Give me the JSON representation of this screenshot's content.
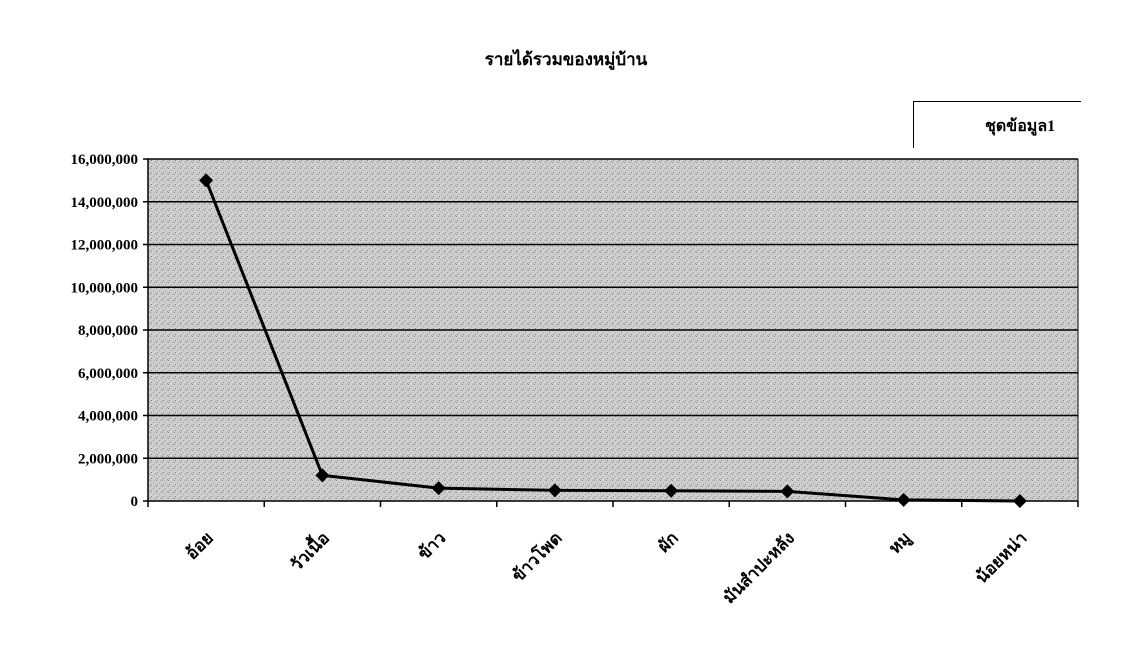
{
  "chart_data": {
    "type": "line",
    "title": "รายได้รวมของหมู่บ้าน",
    "categories": [
      "อ้อย",
      "วัวเนื้อ",
      "ข้าว",
      "ข้าวโพด",
      "ผัก",
      "มันสำปะหลัง",
      "หมู",
      "น้อยหน่า"
    ],
    "series": [
      {
        "name": "ชุดข้อมูล1",
        "values": [
          15000000,
          1200000,
          600000,
          500000,
          480000,
          450000,
          50000,
          0
        ]
      }
    ],
    "yticks": [
      "0",
      "2,000,000",
      "4,000,000",
      "6,000,000",
      "8,000,000",
      "10,000,000",
      "12,000,000",
      "14,000,000",
      "16,000,000"
    ],
    "ylim": [
      0,
      16000000
    ],
    "grid": true,
    "legend": "top-right",
    "colors": {
      "line": "#000000",
      "plot_bg": "#c8c8c8",
      "marker": "#000000"
    }
  }
}
